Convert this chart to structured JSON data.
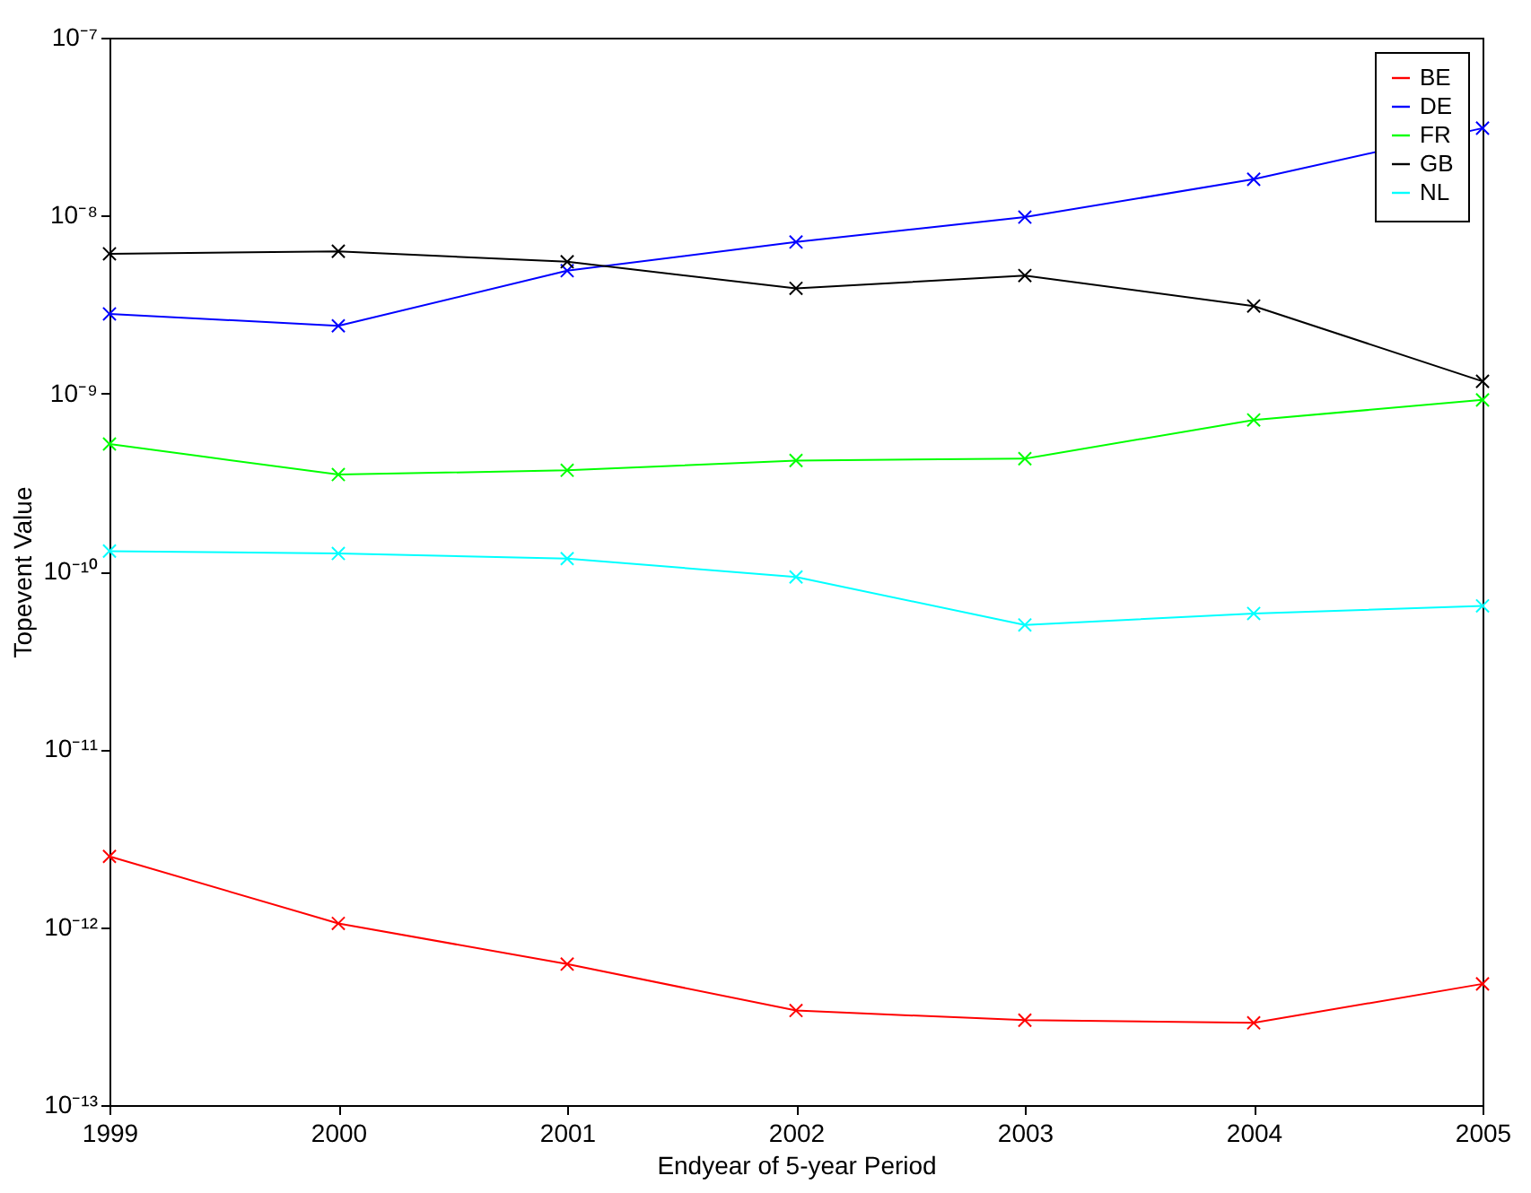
{
  "chart_data": {
    "type": "line",
    "xlabel": "Endyear of 5-year Period",
    "ylabel": "Topevent Value",
    "x": [
      1999,
      2000,
      2001,
      2002,
      2003,
      2004,
      2005
    ],
    "series": [
      {
        "name": "BE",
        "color": "#ff0000",
        "values": [
          2.5e-12,
          1.05e-12,
          6.2e-13,
          3.4e-13,
          3e-13,
          2.9e-13,
          4.8e-13
        ]
      },
      {
        "name": "DE",
        "color": "#0000ff",
        "values": [
          2.8e-09,
          2.4e-09,
          4.9e-09,
          7.1e-09,
          9.8e-09,
          1.6e-08,
          3.1e-08
        ]
      },
      {
        "name": "FR",
        "color": "#00ff00",
        "values": [
          5.2e-10,
          3.5e-10,
          3.7e-10,
          4.2e-10,
          4.3e-10,
          7.1e-10,
          9.2e-10
        ]
      },
      {
        "name": "GB",
        "color": "#000000",
        "values": [
          6.1e-09,
          6.3e-09,
          5.5e-09,
          3.9e-09,
          4.6e-09,
          3.1e-09,
          1.17e-09
        ]
      },
      {
        "name": "NL",
        "color": "#00ffff",
        "values": [
          1.3e-10,
          1.26e-10,
          1.18e-10,
          9.3e-11,
          5e-11,
          5.8e-11,
          6.4e-11
        ]
      }
    ],
    "xlim": [
      1999,
      2005
    ],
    "xticks": [
      1999,
      2000,
      2001,
      2002,
      2003,
      2004,
      2005
    ],
    "ylim": [
      1e-13,
      1e-07
    ],
    "yticks": [
      {
        "value": 1e-13,
        "label": "10⁻¹³"
      },
      {
        "value": 1e-12,
        "label": "10⁻¹²"
      },
      {
        "value": 1e-11,
        "label": "10⁻¹¹"
      },
      {
        "value": 1e-10,
        "label": "10⁻¹⁰"
      },
      {
        "value": 1e-09,
        "label": "10⁻⁹"
      },
      {
        "value": 1e-08,
        "label": "10⁻⁸"
      },
      {
        "value": 1e-07,
        "label": "10⁻⁷"
      }
    ],
    "log": true,
    "legend": "top right",
    "marker": "cross",
    "line_style": "solid",
    "grid": false
  }
}
